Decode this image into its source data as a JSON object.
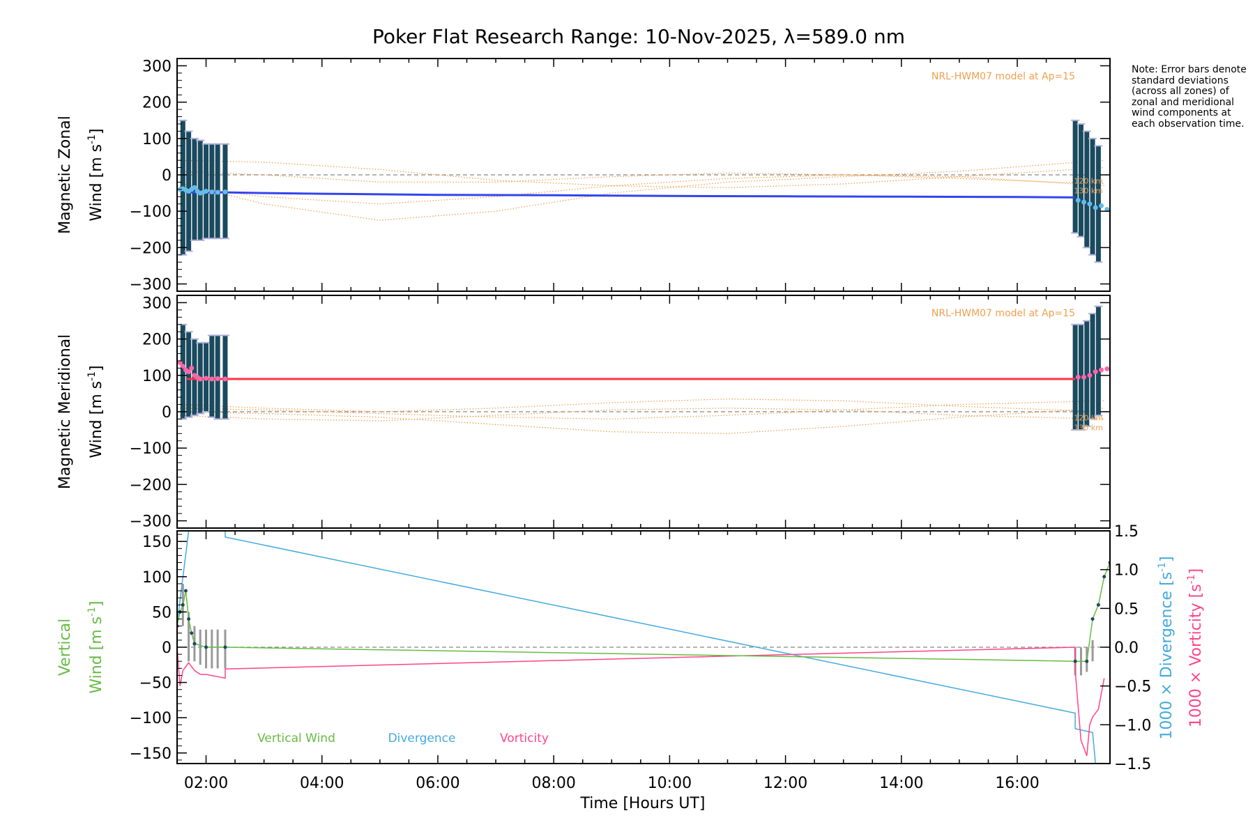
{
  "page_title": "Poker Flat Research Range: 10-Nov-2025, λ=589.0 nm",
  "note": "Note: Error bars denote standard deviations (across all zones) of zonal and meridional wind components at each observation time.",
  "colors": {
    "zonal": "#3344ee",
    "zonal_pts": "#66bbe8",
    "meridional": "#ff3344",
    "meridional_pts": "#ff66aa",
    "errorbar": "#1a4a5e",
    "model": "#f0a050",
    "lavender": "#b0b0dd",
    "vertical": "#66bb44",
    "divergence": "#44aadd",
    "vorticity": "#ff4488",
    "vertical_err": "#999999",
    "zero_line": "#888888"
  },
  "chart_data": [
    {
      "type": "line",
      "panel": "zonal",
      "ylabel_line1": "Magnetic Zonal",
      "ylabel_line2": "Wind [m s",
      "ylabel_sup": "-1",
      "ylabel_close": "]",
      "ylim": [
        -320,
        320
      ],
      "yticks": [
        300,
        200,
        100,
        0,
        -100,
        -200,
        -300
      ],
      "ytick_labels": [
        "300",
        "200",
        "100",
        "0",
        "−100",
        "−200",
        "−300"
      ],
      "model_label": "NRL-HWM07 model at Ap=15",
      "model_alt_labels": [
        "120 km",
        "130 km"
      ],
      "series": [
        {
          "role": "fit",
          "x": [
            1.67,
            2.0,
            2.33,
            3.0,
            4.0,
            6.0,
            8.0,
            10.0,
            12.0,
            14.0,
            16.0,
            17.0
          ],
          "values": [
            -48,
            -48,
            -48,
            -50,
            -52,
            -55,
            -56,
            -58,
            -59,
            -60,
            -61,
            -62
          ]
        },
        {
          "role": "points",
          "x": [
            1.55,
            1.6,
            1.65,
            1.7,
            1.75,
            1.8,
            1.85,
            1.9,
            1.95,
            2.0,
            2.1,
            2.2,
            2.33,
            17.05,
            17.15,
            17.25,
            17.35,
            17.45,
            17.55
          ],
          "values": [
            -40,
            -38,
            -42,
            -45,
            -40,
            -35,
            -45,
            -50,
            -48,
            -45,
            -47,
            -48,
            -47,
            -70,
            -75,
            -80,
            -90,
            -85,
            -95
          ]
        }
      ],
      "errorbars": {
        "x": [
          1.6,
          1.7,
          1.8,
          1.9,
          2.0,
          2.1,
          2.2,
          2.33,
          17.0,
          17.1,
          17.2,
          17.3,
          17.4
        ],
        "low": [
          -220,
          -210,
          -180,
          -180,
          -175,
          -175,
          -175,
          -175,
          -160,
          -170,
          -200,
          -220,
          -240
        ],
        "high": [
          150,
          120,
          100,
          95,
          85,
          85,
          85,
          85,
          150,
          140,
          120,
          100,
          80
        ]
      },
      "model_curves": [
        {
          "x": [
            1.5,
            3,
            5,
            7,
            9,
            11,
            13,
            15,
            17.5
          ],
          "values": [
            40,
            35,
            15,
            -15,
            -30,
            -35,
            -25,
            -5,
            20
          ]
        },
        {
          "x": [
            1.5,
            3,
            5,
            7,
            9,
            11,
            13,
            15,
            17.5
          ],
          "values": [
            10,
            0,
            -20,
            -20,
            -5,
            5,
            0,
            -10,
            -25
          ]
        },
        {
          "x": [
            1.5,
            3,
            5,
            7,
            9,
            11,
            13,
            15,
            17.5
          ],
          "values": [
            -20,
            -80,
            -125,
            -100,
            -50,
            -20,
            -5,
            10,
            40
          ]
        },
        {
          "x": [
            1.5,
            3,
            5,
            7,
            9,
            11,
            13,
            15,
            17.5
          ],
          "values": [
            -30,
            -60,
            -80,
            -60,
            -30,
            -10,
            0,
            -5,
            -30
          ]
        }
      ]
    },
    {
      "type": "line",
      "panel": "meridional",
      "ylabel_line1": "Magnetic Meridional",
      "ylabel_line2": "Wind [m s",
      "ylabel_sup": "-1",
      "ylabel_close": "]",
      "ylim": [
        -320,
        320
      ],
      "yticks": [
        300,
        200,
        100,
        0,
        -100,
        -200,
        -300
      ],
      "ytick_labels": [
        "300",
        "200",
        "100",
        "0",
        "−100",
        "−200",
        "−300"
      ],
      "model_label": "NRL-HWM07 model at Ap=15",
      "model_alt_labels": [
        "120 km",
        "130 km"
      ],
      "series": [
        {
          "role": "fit",
          "x": [
            1.67,
            2.33,
            17.0
          ],
          "values": [
            90,
            90,
            90
          ]
        },
        {
          "role": "points",
          "x": [
            1.55,
            1.6,
            1.65,
            1.7,
            1.75,
            1.8,
            1.85,
            1.9,
            2.0,
            2.1,
            2.2,
            2.33,
            17.05,
            17.15,
            17.25,
            17.35,
            17.45,
            17.55
          ],
          "values": [
            135,
            125,
            115,
            110,
            120,
            100,
            95,
            90,
            92,
            90,
            91,
            90,
            95,
            95,
            100,
            110,
            115,
            118
          ]
        }
      ],
      "errorbars": {
        "x": [
          1.6,
          1.7,
          1.8,
          1.9,
          2.0,
          2.1,
          2.2,
          2.33,
          17.0,
          17.1,
          17.2,
          17.3,
          17.4
        ],
        "low": [
          -20,
          -15,
          -10,
          -5,
          0,
          -15,
          -20,
          -20,
          -50,
          -50,
          -40,
          -20,
          -10
        ],
        "high": [
          240,
          220,
          200,
          190,
          190,
          210,
          210,
          210,
          240,
          240,
          250,
          270,
          290
        ]
      },
      "model_curves": [
        {
          "x": [
            1.5,
            3,
            5,
            7,
            9,
            11,
            13,
            15,
            17.5
          ],
          "values": [
            20,
            10,
            0,
            10,
            25,
            35,
            30,
            15,
            0
          ]
        },
        {
          "x": [
            1.5,
            3,
            5,
            7,
            9,
            11,
            13,
            15,
            17.5
          ],
          "values": [
            0,
            -5,
            -15,
            -35,
            -55,
            -60,
            -40,
            -15,
            10
          ]
        },
        {
          "x": [
            1.5,
            3,
            5,
            7,
            9,
            11,
            13,
            15,
            17.5
          ],
          "values": [
            -10,
            -20,
            -25,
            -10,
            5,
            10,
            5,
            -10,
            -20
          ]
        },
        {
          "x": [
            1.5,
            3,
            5,
            7,
            9,
            11,
            13,
            15,
            17.5
          ],
          "values": [
            10,
            5,
            -5,
            -15,
            -20,
            -10,
            5,
            20,
            30
          ]
        }
      ]
    },
    {
      "type": "line",
      "panel": "vertical",
      "ylabel_line1": "Vertical",
      "ylabel_line2": "Wind [m s",
      "ylabel_sup": "-1",
      "ylabel_close": "]",
      "ylim": [
        -165,
        165
      ],
      "yticks": [
        150,
        100,
        50,
        0,
        -50,
        -100,
        -150
      ],
      "ytick_labels": [
        "150",
        "100",
        "50",
        "0",
        "−50",
        "−100",
        "−150"
      ],
      "y2lim": [
        -1.5,
        1.5
      ],
      "y2ticks": [
        1.5,
        1.0,
        0.5,
        0.0,
        -0.5,
        -1.0,
        -1.5
      ],
      "y2tick_labels": [
        "1.5",
        "1.0",
        "0.5",
        "0.0",
        "−0.5",
        "−1.0",
        "−1.5"
      ],
      "y2label_div": "1000 × Divergence [s",
      "y2label_vort": "1000 × Vorticity [s",
      "y2label_sup": "-1",
      "y2label_close": "]",
      "xlabel": "Time [Hours UT]",
      "xlim": [
        1.5,
        17.6
      ],
      "xticks": [
        2,
        4,
        6,
        8,
        10,
        12,
        14,
        16
      ],
      "xtick_labels": [
        "02:00",
        "04:00",
        "06:00",
        "08:00",
        "10:00",
        "12:00",
        "14:00",
        "16:00"
      ],
      "legend": [
        "Vertical Wind",
        "Divergence",
        "Vorticity"
      ],
      "series": [
        {
          "name": "Vertical Wind",
          "x": [
            1.5,
            1.55,
            1.6,
            1.65,
            1.7,
            1.75,
            1.8,
            2.0,
            2.33,
            17.0,
            17.2,
            17.3,
            17.4,
            17.5,
            17.6
          ],
          "values": [
            30,
            50,
            60,
            80,
            40,
            20,
            5,
            0,
            0,
            -20,
            -20,
            40,
            60,
            100,
            120
          ]
        },
        {
          "name": "Divergence",
          "x": [
            1.5,
            1.6,
            1.7,
            1.75,
            1.8,
            2.33,
            2.33,
            17.0,
            17.0,
            17.3,
            17.35
          ],
          "values": [
            0.3,
            0.9,
            1.5,
            1.5,
            1.5,
            1.5,
            1.42,
            -0.85,
            -1.05,
            -1.1,
            -1.5
          ]
        },
        {
          "name": "Vorticity",
          "x": [
            1.5,
            1.55,
            1.6,
            1.7,
            1.8,
            1.9,
            2.0,
            2.33,
            2.33,
            17.0,
            17.0,
            17.1,
            17.2,
            17.25,
            17.3,
            17.4,
            17.5
          ],
          "values": [
            0.0,
            -0.5,
            -0.3,
            -0.2,
            -0.3,
            -0.35,
            -0.35,
            -0.4,
            -0.28,
            0.0,
            -0.3,
            -1.2,
            -1.4,
            -1.0,
            -0.9,
            -0.8,
            -0.4
          ]
        }
      ],
      "errorbars": {
        "x": [
          1.6,
          1.7,
          1.8,
          1.9,
          2.0,
          2.1,
          2.2,
          2.33,
          17.0,
          17.1,
          17.2,
          17.3
        ],
        "low": [
          30,
          -20,
          -20,
          -25,
          -30,
          -30,
          -30,
          -30,
          -40,
          -40,
          -35,
          -20
        ],
        "high": [
          90,
          50,
          30,
          25,
          25,
          25,
          25,
          25,
          0,
          0,
          0,
          10
        ]
      }
    }
  ]
}
